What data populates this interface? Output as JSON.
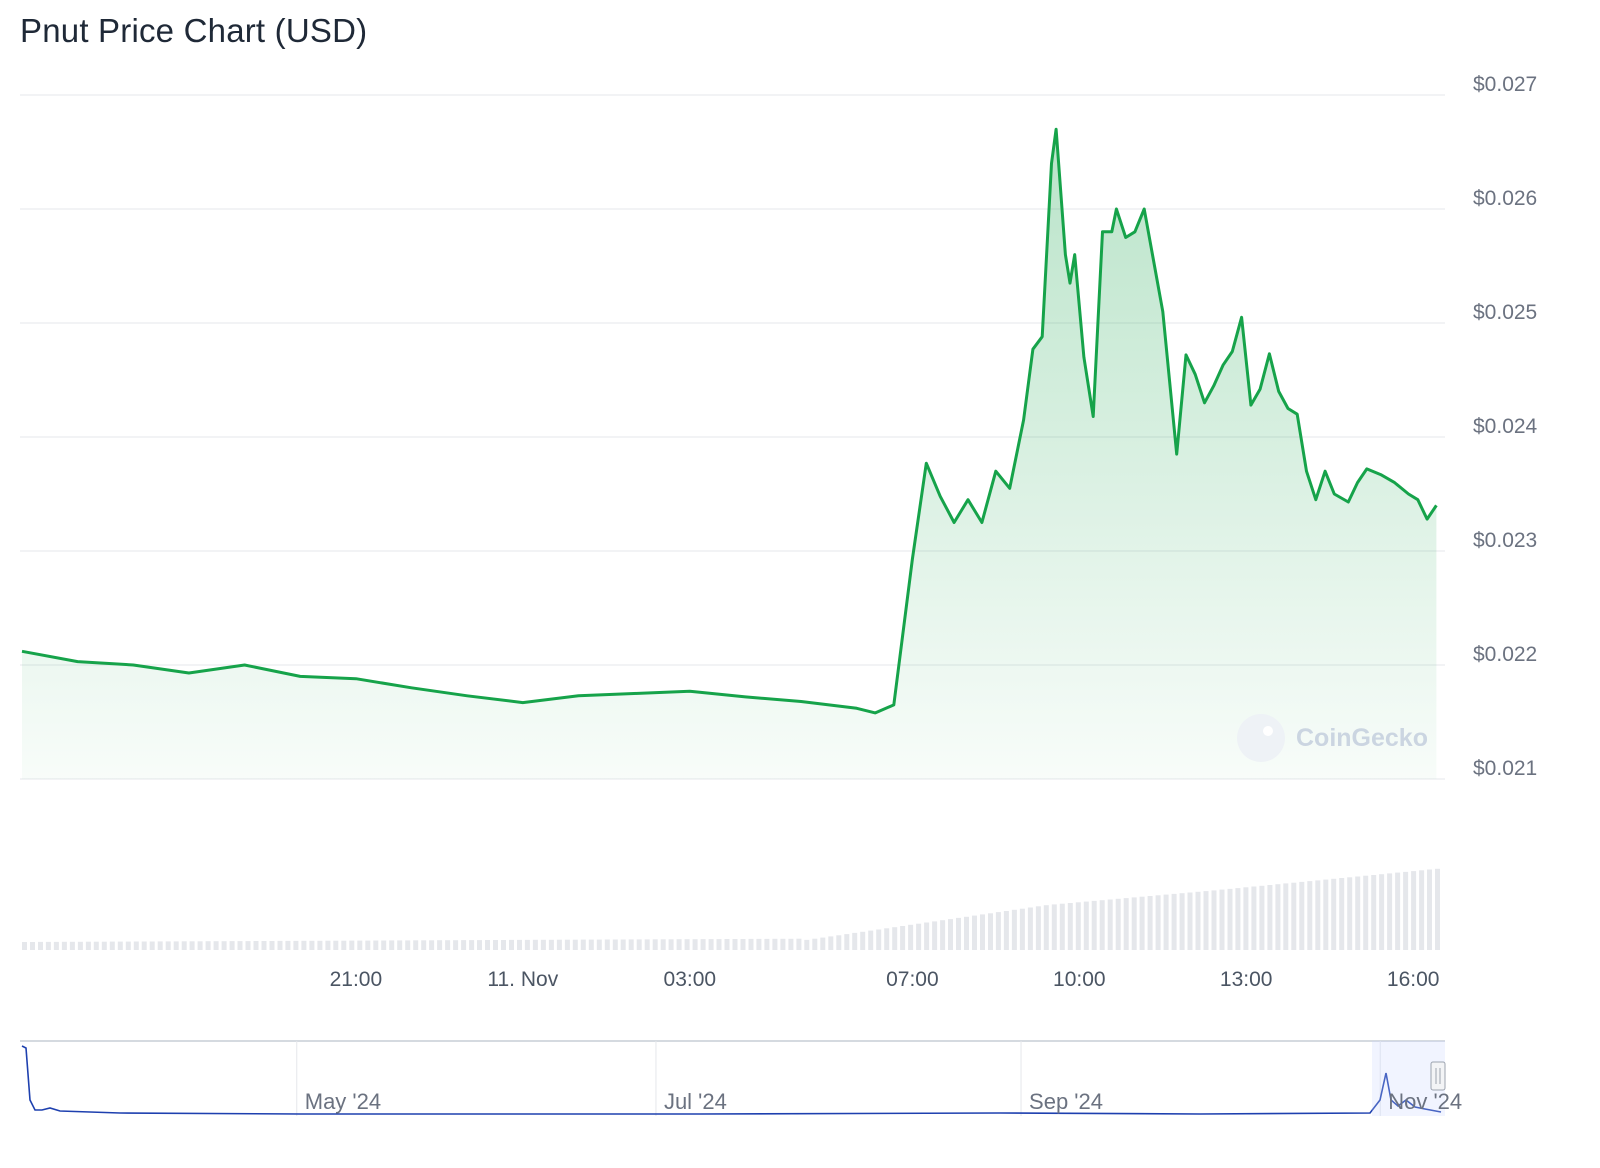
{
  "title": "Pnut Price Chart (USD)",
  "watermark": "CoinGecko",
  "chart_data": {
    "type": "area",
    "title": "Pnut Price Chart (USD)",
    "y_unit": "USD",
    "ylim": [
      0.021,
      0.0272
    ],
    "y_ticks": [
      "$0.021",
      "$0.022",
      "$0.023",
      "$0.024",
      "$0.025",
      "$0.026",
      "$0.027"
    ],
    "y_tick_values": [
      0.021,
      0.022,
      0.023,
      0.024,
      0.025,
      0.026,
      0.027
    ],
    "x_range": [
      "2024-11-10T15:00",
      "2024-11-11T16:30"
    ],
    "x_ticks": [
      "21:00",
      "11. Nov",
      "03:00",
      "07:00",
      "10:00",
      "13:00",
      "16:00"
    ],
    "x_tick_values": [
      "2024-11-10T21:00",
      "2024-11-11T00:00",
      "2024-11-11T03:00",
      "2024-11-11T07:00",
      "2024-11-11T10:00",
      "2024-11-11T13:00",
      "2024-11-11T16:00"
    ],
    "series": [
      {
        "color": "#16a34a",
        "points": [
          [
            "2024-11-10T15:00",
            0.02212
          ],
          [
            "2024-11-10T16:00",
            0.02203
          ],
          [
            "2024-11-10T17:00",
            0.022
          ],
          [
            "2024-11-10T18:00",
            0.02193
          ],
          [
            "2024-11-10T19:00",
            0.022
          ],
          [
            "2024-11-10T20:00",
            0.0219
          ],
          [
            "2024-11-10T21:00",
            0.02188
          ],
          [
            "2024-11-10T22:00",
            0.0218
          ],
          [
            "2024-11-10T23:00",
            0.02173
          ],
          [
            "2024-11-11T00:00",
            0.02167
          ],
          [
            "2024-11-11T01:00",
            0.02173
          ],
          [
            "2024-11-11T02:00",
            0.02175
          ],
          [
            "2024-11-11T03:00",
            0.02177
          ],
          [
            "2024-11-11T04:00",
            0.02172
          ],
          [
            "2024-11-11T05:00",
            0.02168
          ],
          [
            "2024-11-11T06:00",
            0.02162
          ],
          [
            "2024-11-11T06:20",
            0.02158
          ],
          [
            "2024-11-11T06:40",
            0.02165
          ],
          [
            "2024-11-11T07:00",
            0.02293
          ],
          [
            "2024-11-11T07:15",
            0.02377
          ],
          [
            "2024-11-11T07:30",
            0.02348
          ],
          [
            "2024-11-11T07:45",
            0.02325
          ],
          [
            "2024-11-11T08:00",
            0.02345
          ],
          [
            "2024-11-11T08:15",
            0.02325
          ],
          [
            "2024-11-11T08:30",
            0.0237
          ],
          [
            "2024-11-11T08:45",
            0.02355
          ],
          [
            "2024-11-11T09:00",
            0.02415
          ],
          [
            "2024-11-11T09:10",
            0.02477
          ],
          [
            "2024-11-11T09:20",
            0.02488
          ],
          [
            "2024-11-11T09:30",
            0.0264
          ],
          [
            "2024-11-11T09:35",
            0.0267
          ],
          [
            "2024-11-11T09:45",
            0.0256
          ],
          [
            "2024-11-11T09:50",
            0.02535
          ],
          [
            "2024-11-11T09:55",
            0.0256
          ],
          [
            "2024-11-11T10:05",
            0.0247
          ],
          [
            "2024-11-11T10:15",
            0.02418
          ],
          [
            "2024-11-11T10:25",
            0.0258
          ],
          [
            "2024-11-11T10:35",
            0.0258
          ],
          [
            "2024-11-11T10:40",
            0.026
          ],
          [
            "2024-11-11T10:50",
            0.02575
          ],
          [
            "2024-11-11T11:00",
            0.0258
          ],
          [
            "2024-11-11T11:10",
            0.026
          ],
          [
            "2024-11-11T11:20",
            0.02555
          ],
          [
            "2024-11-11T11:30",
            0.0251
          ],
          [
            "2024-11-11T11:45",
            0.02385
          ],
          [
            "2024-11-11T11:55",
            0.02472
          ],
          [
            "2024-11-11T12:05",
            0.02455
          ],
          [
            "2024-11-11T12:15",
            0.0243
          ],
          [
            "2024-11-11T12:25",
            0.02445
          ],
          [
            "2024-11-11T12:35",
            0.02463
          ],
          [
            "2024-11-11T12:45",
            0.02475
          ],
          [
            "2024-11-11T12:55",
            0.02505
          ],
          [
            "2024-11-11T13:05",
            0.02428
          ],
          [
            "2024-11-11T13:15",
            0.02442
          ],
          [
            "2024-11-11T13:25",
            0.02473
          ],
          [
            "2024-11-11T13:35",
            0.0244
          ],
          [
            "2024-11-11T13:45",
            0.02425
          ],
          [
            "2024-11-11T13:55",
            0.0242
          ],
          [
            "2024-11-11T14:05",
            0.0237
          ],
          [
            "2024-11-11T14:15",
            0.02345
          ],
          [
            "2024-11-11T14:25",
            0.0237
          ],
          [
            "2024-11-11T14:35",
            0.0235
          ],
          [
            "2024-11-11T14:50",
            0.02343
          ],
          [
            "2024-11-11T15:00",
            0.0236
          ],
          [
            "2024-11-11T15:10",
            0.02372
          ],
          [
            "2024-11-11T15:25",
            0.02367
          ],
          [
            "2024-11-11T15:40",
            0.0236
          ],
          [
            "2024-11-11T15:55",
            0.0235
          ],
          [
            "2024-11-11T16:05",
            0.02345
          ],
          [
            "2024-11-11T16:15",
            0.02328
          ],
          [
            "2024-11-11T16:25",
            0.0234
          ]
        ]
      }
    ],
    "navigator": {
      "x_ticks": [
        "May '24",
        "Jul '24",
        "Sep '24",
        "Nov '24"
      ],
      "x_tick_values": [
        "2024-05-01",
        "2024-07-01",
        "2024-09-01",
        "2024-11-01"
      ],
      "x_range": [
        "2024-03-15",
        "2024-11-12"
      ],
      "line_color": "#1e40af"
    }
  }
}
